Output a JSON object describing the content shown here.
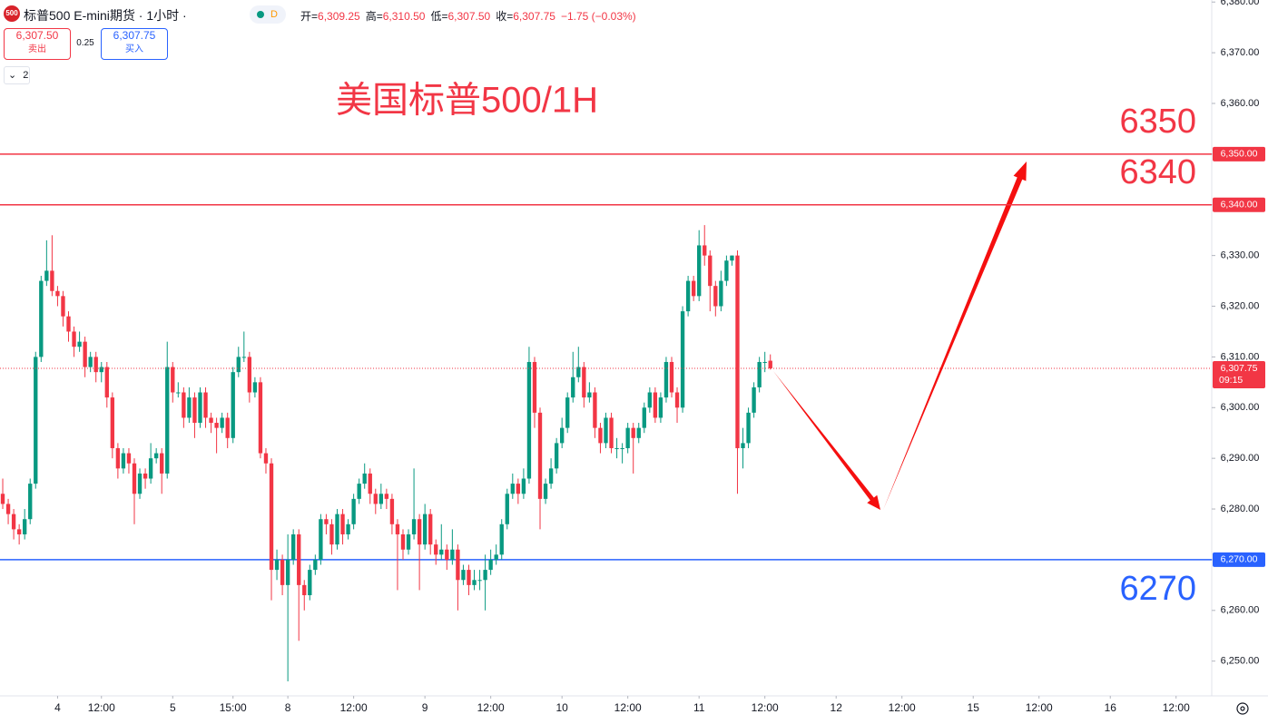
{
  "header": {
    "logo": "500",
    "symbol": "标普500 E-mini期货 · 1小时 ·",
    "badge": "D",
    "ohlc": [
      {
        "label": "开=",
        "value": "6,309.25"
      },
      {
        "label": "高=",
        "value": "6,310.50"
      },
      {
        "label": "低=",
        "value": "6,307.50"
      },
      {
        "label": "收=",
        "value": "6,307.75"
      }
    ],
    "change": "−1.75 (−0.03%)"
  },
  "trade": {
    "sell_price": "6,307.50",
    "sell": "卖出",
    "spread": "0.25",
    "buy_price": "6,307.75",
    "buy": "买入",
    "layers": "2"
  },
  "chart_data": {
    "type": "candlestick",
    "title": "美国标普500/1H",
    "up_color": "#089981",
    "down_color": "#f23645",
    "grid": false,
    "xlim": [
      -0.5,
      220.5
    ],
    "xticks": [
      {
        "value": 10,
        "label": "4"
      },
      {
        "value": 18,
        "label": "12:00"
      },
      {
        "value": 31,
        "label": "5"
      },
      {
        "value": 42,
        "label": "15:00"
      },
      {
        "value": 52,
        "label": "8"
      },
      {
        "value": 64,
        "label": "12:00"
      },
      {
        "value": 77,
        "label": "9"
      },
      {
        "value": 89,
        "label": "12:00"
      },
      {
        "value": 102,
        "label": "10"
      },
      {
        "value": 114,
        "label": "12:00"
      },
      {
        "value": 127,
        "label": "11"
      },
      {
        "value": 139,
        "label": "12:00"
      },
      {
        "value": 152,
        "label": "12"
      },
      {
        "value": 164,
        "label": "12:00"
      },
      {
        "value": 177,
        "label": "15"
      },
      {
        "value": 189,
        "label": "12:00"
      },
      {
        "value": 202,
        "label": "16"
      },
      {
        "value": 214,
        "label": "12:00"
      }
    ],
    "ylim": [
      6243.5,
      6380.4
    ],
    "yticks": [
      {
        "value": 6250,
        "label": "6,250.00"
      },
      {
        "value": 6260,
        "label": "6,260.00"
      },
      {
        "value": 6270,
        "label": "6,270.00"
      },
      {
        "value": 6280,
        "label": "6,280.00"
      },
      {
        "value": 6290,
        "label": "6,290.00"
      },
      {
        "value": 6300,
        "label": "6,300.00"
      },
      {
        "value": 6310,
        "label": "6,310.00"
      },
      {
        "value": 6320,
        "label": "6,320.00"
      },
      {
        "value": 6330,
        "label": "6,330.00"
      },
      {
        "value": 6340,
        "label": "6,340.00"
      },
      {
        "value": 6350,
        "label": "6,350.00"
      },
      {
        "value": 6360,
        "label": "6,360.00"
      },
      {
        "value": 6370,
        "label": "6,370.00"
      },
      {
        "value": 6380,
        "label": "6,380.00"
      }
    ],
    "levels": [
      {
        "value": 6350,
        "label": "6,350.00",
        "text": "6350",
        "color": "#f23645"
      },
      {
        "value": 6340,
        "label": "6,340.00",
        "text": "6340",
        "color": "#f23645"
      },
      {
        "value": 6270,
        "label": "6,270.00",
        "text": "6270",
        "color": "#2962ff"
      }
    ],
    "last_price": {
      "value": 6307.75,
      "label": "6,307.75",
      "countdown": "09:15",
      "color": "#f23645"
    },
    "ohlc": [
      [
        6283,
        6286,
        6280,
        6281
      ],
      [
        6281,
        6282,
        6277,
        6279
      ],
      [
        6279,
        6280,
        6274,
        6276
      ],
      [
        6276,
        6277,
        6273,
        6275
      ],
      [
        6275,
        6280,
        6274,
        6278
      ],
      [
        6278,
        6286,
        6277,
        6285
      ],
      [
        6285,
        6311,
        6284,
        6310
      ],
      [
        6310,
        6326,
        6309,
        6325
      ],
      [
        6325,
        6333,
        6324,
        6327
      ],
      [
        6327,
        6334,
        6322,
        6323
      ],
      [
        6323,
        6324,
        6320,
        6322
      ],
      [
        6322,
        6323,
        6316,
        6318
      ],
      [
        6318,
        6319,
        6313,
        6315
      ],
      [
        6315,
        6316,
        6310,
        6312
      ],
      [
        6312,
        6315,
        6311,
        6313
      ],
      [
        6313,
        6314,
        6306,
        6308
      ],
      [
        6308,
        6311,
        6307,
        6310
      ],
      [
        6310,
        6311,
        6305,
        6307
      ],
      [
        6307,
        6309,
        6305,
        6308
      ],
      [
        6308,
        6309,
        6300,
        6302
      ],
      [
        6302,
        6303,
        6290,
        6292
      ],
      [
        6292,
        6293,
        6286,
        6288
      ],
      [
        6288,
        6292,
        6287,
        6291
      ],
      [
        6291,
        6292,
        6287,
        6289
      ],
      [
        6289,
        6290,
        6277,
        6283
      ],
      [
        6283,
        6288,
        6282,
        6287
      ],
      [
        6287,
        6288,
        6284,
        6286
      ],
      [
        6286,
        6293,
        6285,
        6290
      ],
      [
        6290,
        6292,
        6289,
        6291
      ],
      [
        6291,
        6292,
        6283,
        6287
      ],
      [
        6287,
        6313,
        6286,
        6308
      ],
      [
        6308,
        6309,
        6301,
        6303
      ],
      [
        6303,
        6305,
        6302,
        6303
      ],
      [
        6303,
        6304,
        6296,
        6298
      ],
      [
        6298,
        6304,
        6297,
        6302
      ],
      [
        6302,
        6303,
        6294,
        6297
      ],
      [
        6297,
        6304,
        6296,
        6303
      ],
      [
        6303,
        6304,
        6296,
        6298
      ],
      [
        6298,
        6299,
        6295,
        6297
      ],
      [
        6297,
        6298,
        6291,
        6296
      ],
      [
        6296,
        6299,
        6295,
        6298
      ],
      [
        6298,
        6299,
        6292,
        6294
      ],
      [
        6294,
        6308,
        6293,
        6307
      ],
      [
        6307,
        6312,
        6306,
        6310
      ],
      [
        6310,
        6315,
        6309,
        6310
      ],
      [
        6310,
        6311,
        6301,
        6303
      ],
      [
        6303,
        6306,
        6302,
        6305
      ],
      [
        6305,
        6306,
        6290,
        6291
      ],
      [
        6291,
        6292,
        6287,
        6289
      ],
      [
        6289,
        6290,
        6262,
        6268
      ],
      [
        6268,
        6272,
        6266,
        6270
      ],
      [
        6270,
        6271,
        6263,
        6265
      ],
      [
        6265,
        6275,
        6246,
        6270
      ],
      [
        6270,
        6276,
        6269,
        6275
      ],
      [
        6275,
        6276,
        6254,
        6265
      ],
      [
        6265,
        6266,
        6260,
        6263
      ],
      [
        6263,
        6269,
        6262,
        6268
      ],
      [
        6268,
        6271,
        6267,
        6270
      ],
      [
        6270,
        6279,
        6269,
        6278
      ],
      [
        6278,
        6279,
        6275,
        6277
      ],
      [
        6277,
        6278,
        6271,
        6273
      ],
      [
        6273,
        6280,
        6272,
        6279
      ],
      [
        6279,
        6280,
        6273,
        6275
      ],
      [
        6275,
        6278,
        6274,
        6277
      ],
      [
        6277,
        6283,
        6276,
        6282
      ],
      [
        6282,
        6286,
        6281,
        6285
      ],
      [
        6285,
        6289,
        6284,
        6287
      ],
      [
        6287,
        6288,
        6281,
        6283
      ],
      [
        6283,
        6284,
        6279,
        6281
      ],
      [
        6281,
        6285,
        6280,
        6283
      ],
      [
        6283,
        6284,
        6280,
        6282
      ],
      [
        6282,
        6283,
        6275,
        6277
      ],
      [
        6277,
        6278,
        6264,
        6275
      ],
      [
        6275,
        6276,
        6270,
        6272
      ],
      [
        6272,
        6276,
        6271,
        6275
      ],
      [
        6275,
        6288,
        6274,
        6278
      ],
      [
        6278,
        6279,
        6264,
        6273
      ],
      [
        6273,
        6281,
        6272,
        6279
      ],
      [
        6279,
        6280,
        6271,
        6273
      ],
      [
        6273,
        6274,
        6269,
        6271
      ],
      [
        6271,
        6277,
        6270,
        6272
      ],
      [
        6272,
        6273,
        6268,
        6270
      ],
      [
        6270,
        6276,
        6269,
        6272
      ],
      [
        6272,
        6273,
        6260,
        6266
      ],
      [
        6266,
        6269,
        6265,
        6268
      ],
      [
        6268,
        6269,
        6263,
        6265
      ],
      [
        6265,
        6268,
        6264,
        6266
      ],
      [
        6266,
        6268,
        6264,
        6266
      ],
      [
        6266,
        6271,
        6260,
        6268
      ],
      [
        6268,
        6272,
        6267,
        6270
      ],
      [
        6270,
        6273,
        6269,
        6271
      ],
      [
        6271,
        6278,
        6270,
        6277
      ],
      [
        6277,
        6284,
        6276,
        6283
      ],
      [
        6283,
        6287,
        6282,
        6285
      ],
      [
        6285,
        6286,
        6281,
        6283
      ],
      [
        6283,
        6288,
        6282,
        6286
      ],
      [
        6286,
        6312,
        6285,
        6309
      ],
      [
        6309,
        6310,
        6296,
        6299
      ],
      [
        6299,
        6300,
        6276,
        6282
      ],
      [
        6282,
        6286,
        6281,
        6285
      ],
      [
        6285,
        6290,
        6284,
        6288
      ],
      [
        6288,
        6294,
        6287,
        6293
      ],
      [
        6293,
        6298,
        6292,
        6296
      ],
      [
        6296,
        6303,
        6295,
        6302
      ],
      [
        6302,
        6311,
        6301,
        6306
      ],
      [
        6306,
        6312,
        6305,
        6308
      ],
      [
        6308,
        6309,
        6300,
        6302
      ],
      [
        6302,
        6305,
        6301,
        6303
      ],
      [
        6303,
        6304,
        6294,
        6296
      ],
      [
        6296,
        6297,
        6291,
        6293
      ],
      [
        6293,
        6299,
        6292,
        6298
      ],
      [
        6298,
        6299,
        6291,
        6292
      ],
      [
        6292,
        6294,
        6290,
        6292
      ],
      [
        6292,
        6293,
        6289,
        6292
      ],
      [
        6292,
        6297,
        6291,
        6296
      ],
      [
        6296,
        6297,
        6287,
        6294
      ],
      [
        6294,
        6297,
        6293,
        6296
      ],
      [
        6296,
        6301,
        6295,
        6300
      ],
      [
        6300,
        6304,
        6299,
        6303
      ],
      [
        6303,
        6304,
        6297,
        6298
      ],
      [
        6298,
        6303,
        6297,
        6302
      ],
      [
        6302,
        6310,
        6301,
        6309
      ],
      [
        6309,
        6310,
        6302,
        6303
      ],
      [
        6303,
        6304,
        6297,
        6300
      ],
      [
        6300,
        6320,
        6299,
        6319
      ],
      [
        6319,
        6326,
        6318,
        6325
      ],
      [
        6325,
        6326,
        6321,
        6322
      ],
      [
        6322,
        6335,
        6321,
        6332
      ],
      [
        6332,
        6336,
        6328,
        6330
      ],
      [
        6330,
        6331,
        6319,
        6324
      ],
      [
        6324,
        6325,
        6318,
        6320
      ],
      [
        6320,
        6327,
        6319,
        6325
      ],
      [
        6325,
        6330,
        6324,
        6329
      ],
      [
        6329,
        6330,
        6328,
        6330
      ],
      [
        6330,
        6331,
        6283,
        6292
      ],
      [
        6292,
        6296,
        6288,
        6293
      ],
      [
        6293,
        6300,
        6292,
        6299
      ],
      [
        6299,
        6305,
        6298,
        6304
      ],
      [
        6304,
        6310,
        6303,
        6309
      ],
      [
        6309,
        6311,
        6307,
        6309
      ],
      [
        6309.25,
        6310.5,
        6307.5,
        6307.75
      ]
    ]
  }
}
